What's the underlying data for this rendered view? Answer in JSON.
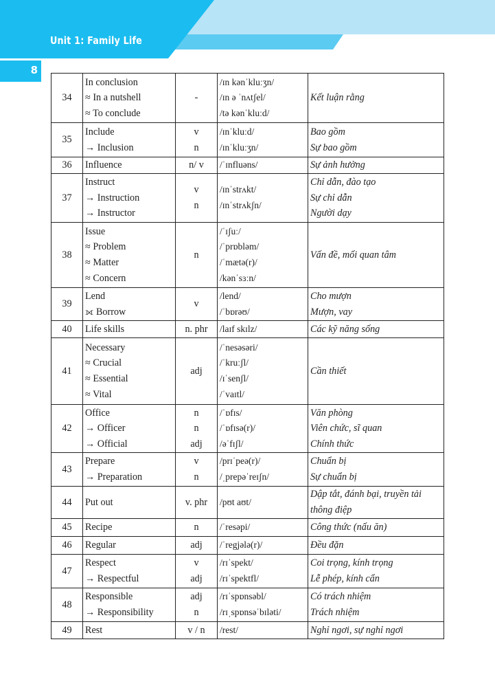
{
  "header": {
    "unit_title": "Unit 1: Family Life",
    "page_number": "8",
    "colors": {
      "primary": "#1bbdf0",
      "light": "#b8e4f8",
      "mid": "#5ccbf2"
    }
  },
  "rows": [
    {
      "num": "34",
      "word": [
        "In conclusion",
        "≈ In a nutshell",
        "≈ To conclude"
      ],
      "pos": [
        "-"
      ],
      "ipa": [
        "/ɪn kənˈkluːʒn/",
        "/ɪn ə ˈnʌtʃel/",
        "/tə kənˈkluːd/"
      ],
      "meaning": [
        "Kết luận rằng"
      ]
    },
    {
      "num": "35",
      "word": [
        "Include",
        "→ Inclusion"
      ],
      "pos": [
        "v",
        "n"
      ],
      "ipa": [
        "/ɪnˈkluːd/",
        "/ɪnˈkluːʒn/"
      ],
      "meaning": [
        "Bao gồm",
        "Sự bao gồm"
      ]
    },
    {
      "num": "36",
      "word": [
        "Influence"
      ],
      "pos": [
        "n/ v"
      ],
      "ipa": [
        "/ˈɪnfluəns/"
      ],
      "meaning": [
        "Sự ảnh hưởng"
      ]
    },
    {
      "num": "37",
      "word": [
        "Instruct",
        "→ Instruction",
        "→ Instructor"
      ],
      "pos": [
        "v",
        "n"
      ],
      "ipa": [
        "/ɪnˈstrʌkt/",
        "/ɪnˈstrʌkʃn/"
      ],
      "meaning": [
        "Chỉ dẫn, đào tạo",
        "Sự chỉ dẫn",
        "Người dạy"
      ]
    },
    {
      "num": "38",
      "word": [
        "Issue",
        "≈ Problem",
        "≈ Matter",
        "≈ Concern"
      ],
      "pos": [
        "n"
      ],
      "ipa": [
        "/ˈɪʃuː/",
        "/ˈprɒbləm/",
        "/ˈmætə(r)/",
        "/kənˈsɜːn/"
      ],
      "meaning": [
        "Vấn đề, mối quan tâm"
      ]
    },
    {
      "num": "39",
      "word": [
        "Lend",
        "⟗ Borrow"
      ],
      "pos": [
        "v"
      ],
      "ipa": [
        "/lend/",
        "/ˈbɒrəʊ/"
      ],
      "meaning": [
        "Cho mượn",
        "Mượn, vay"
      ]
    },
    {
      "num": "40",
      "word": [
        "Life skills"
      ],
      "pos": [
        "n. phr"
      ],
      "ipa": [
        "/laɪf skɪlz/"
      ],
      "meaning": [
        "Các kỹ năng sống"
      ]
    },
    {
      "num": "41",
      "word": [
        "Necessary",
        "≈ Crucial",
        "≈ Essential",
        "≈ Vital"
      ],
      "pos": [
        "adj"
      ],
      "ipa": [
        "/ˈnesəsəri/",
        "/ˈkruːʃl/",
        "/ɪˈsenʃl/",
        "/ˈvaɪtl/"
      ],
      "meaning": [
        "Cần thiết"
      ]
    },
    {
      "num": "42",
      "word": [
        "Office",
        "→ Officer",
        "→ Official"
      ],
      "pos": [
        "n",
        "n",
        "adj"
      ],
      "ipa": [
        "/ˈɒfɪs/",
        "/ˈɒfɪsə(r)/",
        "/əˈfɪʃl/"
      ],
      "meaning": [
        "Văn phòng",
        "Viên chức, sĩ quan",
        "Chính thức"
      ]
    },
    {
      "num": "43",
      "word": [
        "Prepare",
        "→ Preparation"
      ],
      "pos": [
        "v",
        "n"
      ],
      "ipa": [
        "/prɪˈpeə(r)/",
        "/ˌprepəˈreɪʃn/"
      ],
      "meaning": [
        "Chuẩn bị",
        "Sự chuẩn bị"
      ]
    },
    {
      "num": "44",
      "word": [
        "Put out"
      ],
      "pos": [
        "v. phr"
      ],
      "ipa": [
        "/pʊt aʊt/"
      ],
      "meaning": [
        "Dập tắt, đánh bại, truyền tải thông điệp"
      ]
    },
    {
      "num": "45",
      "word": [
        "Recipe"
      ],
      "pos": [
        "n"
      ],
      "ipa": [
        "/ˈresəpi/"
      ],
      "meaning": [
        "Công thức (nấu ăn)"
      ]
    },
    {
      "num": "46",
      "word": [
        "Regular"
      ],
      "pos": [
        "adj"
      ],
      "ipa": [
        "/ˈregjələ(r)/"
      ],
      "meaning": [
        "Đều đặn"
      ]
    },
    {
      "num": "47",
      "word": [
        "Respect",
        "→ Respectful"
      ],
      "pos": [
        "v",
        "adj"
      ],
      "ipa": [
        "/rɪˈspekt/",
        "/rɪˈspektfl/"
      ],
      "meaning": [
        "Coi trọng, kính trọng",
        "Lễ phép, kính cẩn"
      ]
    },
    {
      "num": "48",
      "word": [
        "Responsible",
        "→ Responsibility"
      ],
      "pos": [
        "adj",
        "n"
      ],
      "ipa": [
        "/rɪˈspɒnsəbl/",
        "/rɪˌspɒnsəˈbɪləti/"
      ],
      "meaning": [
        "Có trách nhiệm",
        "Trách nhiệm"
      ]
    },
    {
      "num": "49",
      "word": [
        "Rest"
      ],
      "pos": [
        "v / n"
      ],
      "ipa": [
        "/rest/"
      ],
      "meaning": [
        "Nghỉ ngơi, sự nghỉ ngơi"
      ]
    }
  ]
}
